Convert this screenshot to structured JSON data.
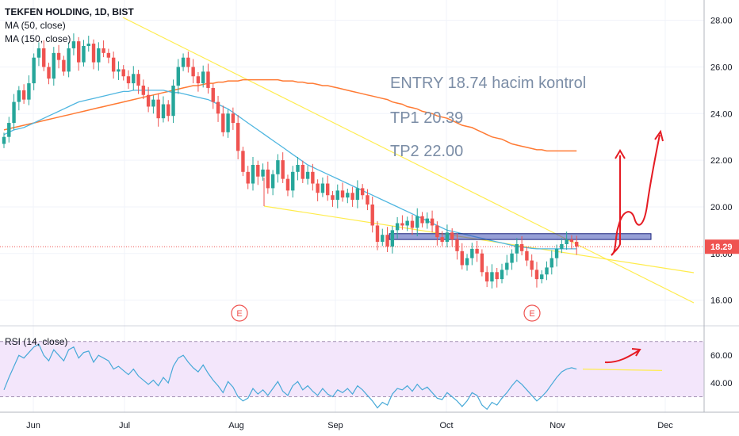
{
  "header": {
    "symbol_line": "TEKFEN HOLDING, 1D, BIST",
    "ma50_label": "MA (50, close)",
    "ma150_label": "MA (150, close)"
  },
  "rsi_panel": {
    "label": "RSI (14, close)",
    "levels": [
      40,
      60
    ],
    "band": [
      30,
      70
    ]
  },
  "colors": {
    "up": "#26a69a",
    "down": "#ef5350",
    "ma50": "#4fb6e0",
    "ma150": "#ff7a33",
    "trend": "#ffec4c",
    "zone": "#3f51b5",
    "rsi_line": "#47a9d8",
    "rsi_bg": "#f3e6fb",
    "annotation_red": "#e51b23",
    "price_tag": "#ef5350"
  },
  "annotations": {
    "entry": "ENTRY 18.74 hacim kontrol",
    "tp1": "TP1 20.39",
    "tp2": "TP2 22.00",
    "earnings_marker": "E"
  },
  "chart_data": {
    "type": "candlestick",
    "title": "TEKFEN HOLDING, 1D, BIST",
    "x_tick_labels": [
      "Jun",
      "Jul",
      "Aug",
      "Sep",
      "Oct",
      "Nov",
      "Dec"
    ],
    "y_tick_labels": [
      "16.00",
      "18.00",
      "20.00",
      "22.00",
      "24.00",
      "26.00",
      "28.00"
    ],
    "ylim": [
      15.0,
      28.6
    ],
    "last_price": "18.29",
    "entry_zone": [
      18.6,
      18.85
    ],
    "closes": [
      23.0,
      23.6,
      24.5,
      25.0,
      24.6,
      25.3,
      26.4,
      26.8,
      26.0,
      25.5,
      26.6,
      26.3,
      25.8,
      26.8,
      27.1,
      26.2,
      26.9,
      27.0,
      26.2,
      26.8,
      26.6,
      26.4,
      25.8,
      25.9,
      25.6,
      25.3,
      25.7,
      25.2,
      24.8,
      24.3,
      24.6,
      23.8,
      24.4,
      23.9,
      25.2,
      26.0,
      26.4,
      26.0,
      25.6,
      25.3,
      25.8,
      25.1,
      24.5,
      24.0,
      23.2,
      24.0,
      23.6,
      22.4,
      21.5,
      21.0,
      21.8,
      21.3,
      21.6,
      20.8,
      21.4,
      22.0,
      21.2,
      20.7,
      21.5,
      21.8,
      21.2,
      21.5,
      21.0,
      20.6,
      21.0,
      20.5,
      20.3,
      20.7,
      20.4,
      20.6,
      20.3,
      20.8,
      20.5,
      20.1,
      19.2,
      18.5,
      18.8,
      18.3,
      19.0,
      19.3,
      19.2,
      19.4,
      19.1,
      19.6,
      19.3,
      19.5,
      19.2,
      18.7,
      18.5,
      18.9,
      18.6,
      18.1,
      17.5,
      17.8,
      18.2,
      18.0,
      17.2,
      16.8,
      17.2,
      16.9,
      17.3,
      17.6,
      18.0,
      18.4,
      18.1,
      17.7,
      17.3,
      16.9,
      17.1,
      17.4,
      17.8,
      18.2,
      18.4,
      18.6,
      18.5,
      18.3
    ],
    "ma50": [
      23.1,
      23.2,
      23.3,
      23.35,
      23.4,
      23.5,
      23.6,
      23.7,
      23.8,
      23.9,
      24.0,
      24.1,
      24.2,
      24.3,
      24.4,
      24.5,
      24.55,
      24.6,
      24.65,
      24.7,
      24.75,
      24.8,
      24.85,
      24.9,
      24.95,
      24.95,
      25.0,
      25.0,
      25.0,
      25.0,
      25.0,
      25.0,
      25.0,
      24.95,
      24.9,
      24.9,
      24.85,
      24.8,
      24.75,
      24.7,
      24.65,
      24.6,
      24.5,
      24.4,
      24.3,
      24.2,
      24.05,
      23.9,
      23.75,
      23.6,
      23.45,
      23.3,
      23.15,
      23.0,
      22.85,
      22.7,
      22.55,
      22.4,
      22.25,
      22.1,
      21.95,
      21.8,
      21.7,
      21.6,
      21.5,
      21.4,
      21.3,
      21.2,
      21.1,
      21.0,
      20.9,
      20.8,
      20.7,
      20.6,
      20.5,
      20.4,
      20.3,
      20.2,
      20.1,
      20.0,
      19.9,
      19.8,
      19.7,
      19.6,
      19.5,
      19.4,
      19.3,
      19.2,
      19.1,
      19.0,
      18.95,
      18.9,
      18.85,
      18.8,
      18.75,
      18.7,
      18.65,
      18.6,
      18.55,
      18.5,
      18.45,
      18.4,
      18.35,
      18.3,
      18.27,
      18.25,
      18.22,
      18.2,
      18.2,
      18.2,
      18.2,
      18.2,
      18.2,
      18.2,
      18.2,
      18.2
    ],
    "ma150": [
      23.3,
      23.35,
      23.4,
      23.45,
      23.5,
      23.55,
      23.6,
      23.65,
      23.7,
      23.75,
      23.8,
      23.85,
      23.9,
      23.95,
      24.0,
      24.05,
      24.1,
      24.15,
      24.2,
      24.25,
      24.3,
      24.35,
      24.4,
      24.45,
      24.5,
      24.55,
      24.6,
      24.65,
      24.7,
      24.75,
      24.8,
      24.85,
      24.9,
      24.95,
      25.0,
      25.05,
      25.1,
      25.15,
      25.2,
      25.2,
      25.25,
      25.3,
      25.3,
      25.35,
      25.35,
      25.4,
      25.4,
      25.4,
      25.45,
      25.45,
      25.45,
      25.45,
      25.45,
      25.45,
      25.45,
      25.45,
      25.4,
      25.4,
      25.4,
      25.35,
      25.35,
      25.3,
      25.3,
      25.25,
      25.2,
      25.2,
      25.15,
      25.1,
      25.05,
      25.0,
      24.95,
      24.9,
      24.85,
      24.8,
      24.75,
      24.7,
      24.65,
      24.6,
      24.5,
      24.45,
      24.4,
      24.3,
      24.25,
      24.2,
      24.1,
      24.05,
      24.0,
      23.9,
      23.85,
      23.8,
      23.7,
      23.6,
      23.5,
      23.45,
      23.4,
      23.3,
      23.2,
      23.1,
      23.0,
      22.95,
      22.9,
      22.8,
      22.7,
      22.65,
      22.6,
      22.55,
      22.5,
      22.45,
      22.45,
      22.4,
      22.4,
      22.4,
      22.4,
      22.4,
      22.4,
      22.4
    ],
    "rsi": [
      35,
      44,
      52,
      60,
      58,
      62,
      66,
      68,
      60,
      56,
      64,
      60,
      56,
      64,
      66,
      58,
      62,
      63,
      55,
      60,
      58,
      56,
      50,
      52,
      49,
      46,
      50,
      45,
      42,
      39,
      42,
      38,
      44,
      40,
      52,
      58,
      60,
      55,
      51,
      48,
      53,
      47,
      42,
      38,
      33,
      41,
      37,
      30,
      27,
      29,
      36,
      32,
      35,
      31,
      36,
      41,
      34,
      31,
      38,
      41,
      35,
      38,
      34,
      31,
      36,
      32,
      30,
      35,
      33,
      36,
      32,
      38,
      35,
      31,
      27,
      22,
      26,
      24,
      32,
      36,
      35,
      38,
      34,
      39,
      35,
      37,
      33,
      29,
      28,
      33,
      30,
      27,
      23,
      27,
      33,
      31,
      24,
      21,
      26,
      24,
      29,
      33,
      38,
      42,
      39,
      35,
      31,
      27,
      30,
      34,
      39,
      44,
      48,
      50,
      51,
      50
    ],
    "rsi_ylim": [
      20,
      75
    ],
    "rsi_tick_labels": [
      "40.00",
      "60.00"
    ]
  }
}
